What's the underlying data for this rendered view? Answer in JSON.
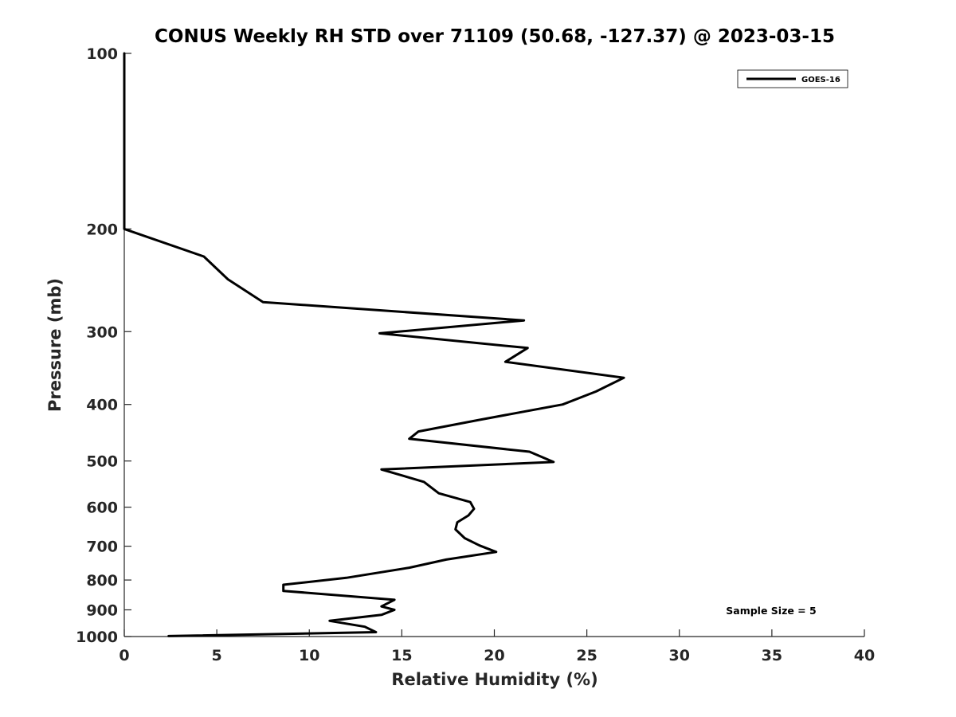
{
  "chart_data": {
    "type": "line",
    "title": "CONUS Weekly RH STD over 71109 (50.68, -127.37) @ 2023-03-15",
    "xlabel": "Relative Humidity (%)",
    "ylabel": "Pressure (mb)",
    "xlim": [
      0,
      40
    ],
    "ylim": [
      100,
      1000
    ],
    "y_scale": "log",
    "y_reversed": true,
    "grid": false,
    "legend_position": "top-right",
    "x_ticks": [
      0,
      5,
      10,
      15,
      20,
      25,
      30,
      35,
      40
    ],
    "y_ticks": [
      100,
      200,
      300,
      400,
      500,
      600,
      700,
      800,
      900,
      1000
    ],
    "series": [
      {
        "name": "GOES-16",
        "color": "#000000",
        "x": [
          0,
          0,
          0,
          0,
          4.3,
          5.6,
          7.5,
          21.6,
          13.8,
          21.8,
          20.6,
          27.0,
          25.5,
          23.7,
          19.2,
          15.9,
          15.4,
          21.9,
          23.2,
          13.9,
          16.2,
          17.0,
          18.7,
          18.9,
          18.6,
          18.0,
          17.9,
          18.4,
          19.2,
          20.1,
          17.4,
          15.4,
          12.0,
          8.6,
          8.6,
          14.6,
          13.9,
          14.6,
          13.9,
          11.1,
          13.0,
          13.6,
          2.4
        ],
        "y": [
          100,
          150,
          195,
          200,
          223,
          244,
          267,
          287,
          302,
          320,
          338,
          360,
          380,
          400,
          425,
          445,
          458,
          482,
          502,
          517,
          543,
          568,
          588,
          604,
          620,
          637,
          655,
          678,
          698,
          716,
          738,
          762,
          793,
          815,
          835,
          865,
          888,
          900,
          918,
          940,
          962,
          983,
          998
        ]
      }
    ],
    "annotation": "Sample Size = 5"
  }
}
